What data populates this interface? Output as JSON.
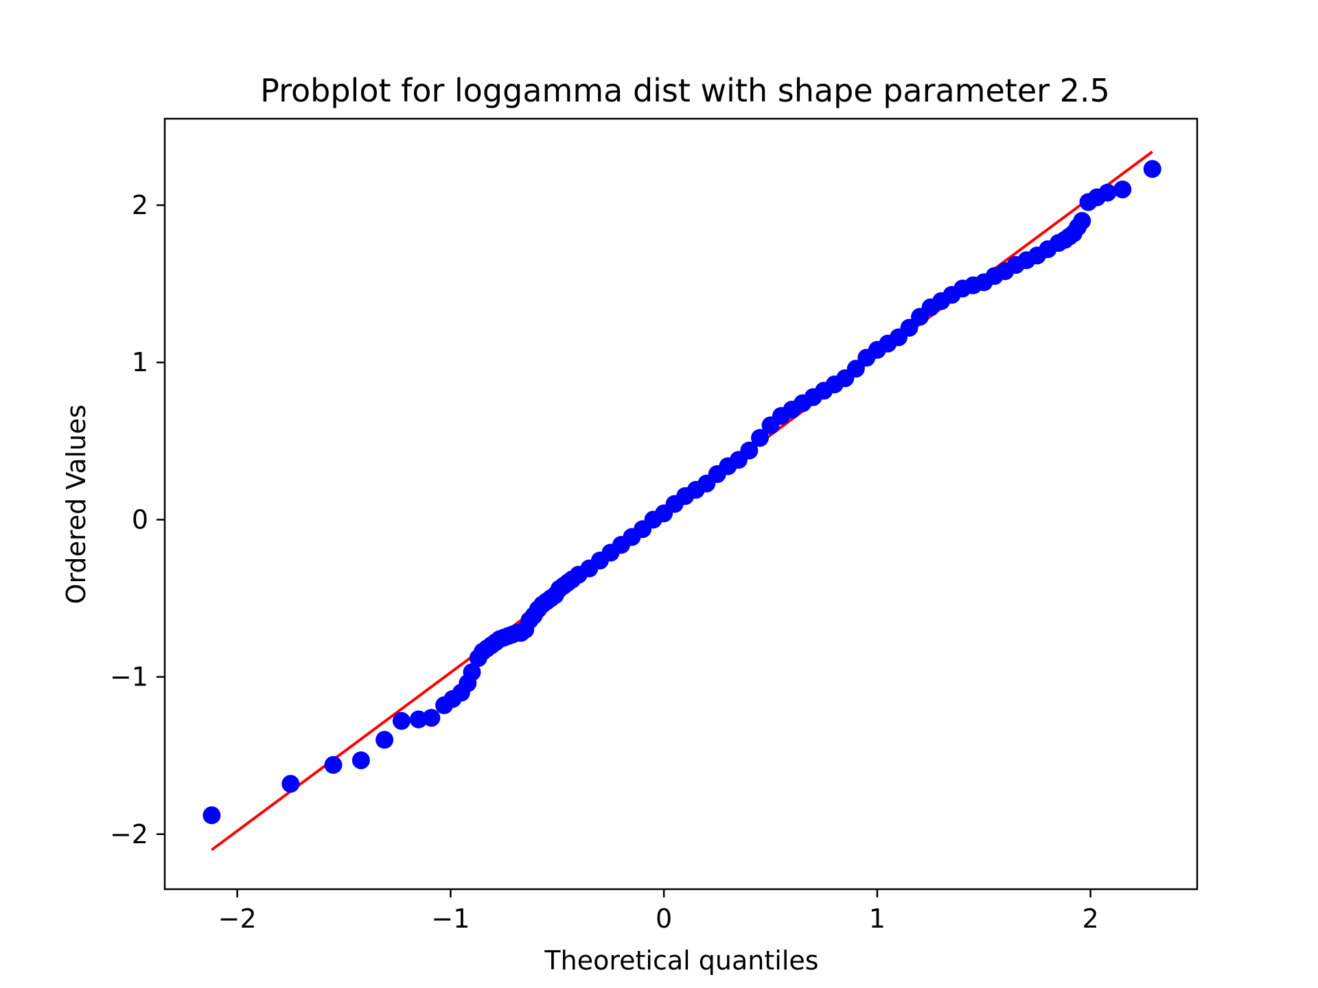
{
  "chart_data": {
    "type": "scatter",
    "title": "Probplot for loggamma dist with shape parameter 2.5",
    "xlabel": "Theoretical quantiles",
    "ylabel": "Ordered Values",
    "xlim": [
      -2.34,
      2.5
    ],
    "ylim": [
      -2.35,
      2.55
    ],
    "xticks": [
      {
        "value": -2,
        "label": "−2"
      },
      {
        "value": -1,
        "label": "−1"
      },
      {
        "value": 0,
        "label": "0"
      },
      {
        "value": 1,
        "label": "1"
      },
      {
        "value": 2,
        "label": "2"
      }
    ],
    "yticks": [
      {
        "value": -2,
        "label": "−2"
      },
      {
        "value": -1,
        "label": "−1"
      },
      {
        "value": 0,
        "label": "0"
      },
      {
        "value": 1,
        "label": "1"
      },
      {
        "value": 2,
        "label": "2"
      }
    ],
    "grid": false,
    "legend": "none",
    "series": [
      {
        "kind": "points",
        "color": "#0000ff",
        "x": [
          -2.12,
          -1.75,
          -1.55,
          -1.42,
          -1.31,
          -1.23,
          -1.15,
          -1.09,
          -1.03,
          -0.99,
          -0.95,
          -0.92,
          -0.9,
          -0.87,
          -0.85,
          -0.83,
          -0.81,
          -0.79,
          -0.77,
          -0.75,
          -0.73,
          -0.71,
          -0.69,
          -0.67,
          -0.65,
          -0.63,
          -0.61,
          -0.59,
          -0.57,
          -0.55,
          -0.53,
          -0.51,
          -0.49,
          -0.47,
          -0.45,
          -0.43,
          -0.4,
          -0.35,
          -0.3,
          -0.25,
          -0.2,
          -0.15,
          -0.1,
          -0.05,
          0.0,
          0.05,
          0.1,
          0.15,
          0.2,
          0.25,
          0.3,
          0.35,
          0.4,
          0.45,
          0.5,
          0.55,
          0.6,
          0.65,
          0.7,
          0.75,
          0.8,
          0.85,
          0.9,
          0.95,
          1.0,
          1.05,
          1.1,
          1.15,
          1.2,
          1.25,
          1.3,
          1.35,
          1.4,
          1.45,
          1.5,
          1.55,
          1.6,
          1.65,
          1.7,
          1.75,
          1.8,
          1.85,
          1.88,
          1.9,
          1.92,
          1.94,
          1.96,
          1.99,
          2.03,
          2.08,
          2.15,
          2.29
        ],
        "y": [
          -1.88,
          -1.68,
          -1.56,
          -1.53,
          -1.4,
          -1.28,
          -1.27,
          -1.26,
          -1.18,
          -1.14,
          -1.1,
          -1.04,
          -0.97,
          -0.88,
          -0.84,
          -0.82,
          -0.8,
          -0.78,
          -0.76,
          -0.75,
          -0.74,
          -0.73,
          -0.72,
          -0.72,
          -0.7,
          -0.64,
          -0.61,
          -0.57,
          -0.54,
          -0.52,
          -0.5,
          -0.48,
          -0.44,
          -0.42,
          -0.4,
          -0.38,
          -0.35,
          -0.31,
          -0.26,
          -0.21,
          -0.16,
          -0.11,
          -0.06,
          0.0,
          0.04,
          0.1,
          0.15,
          0.19,
          0.23,
          0.29,
          0.34,
          0.38,
          0.44,
          0.52,
          0.6,
          0.66,
          0.7,
          0.74,
          0.78,
          0.82,
          0.86,
          0.9,
          0.96,
          1.03,
          1.08,
          1.12,
          1.16,
          1.22,
          1.29,
          1.35,
          1.39,
          1.43,
          1.47,
          1.49,
          1.51,
          1.55,
          1.58,
          1.62,
          1.65,
          1.68,
          1.72,
          1.76,
          1.78,
          1.8,
          1.82,
          1.86,
          1.9,
          2.02,
          2.05,
          2.08,
          2.1,
          2.23
        ]
      },
      {
        "kind": "line",
        "color": "#ff0000",
        "x": [
          -2.12,
          2.29
        ],
        "y": [
          -2.1,
          2.34
        ]
      }
    ]
  }
}
